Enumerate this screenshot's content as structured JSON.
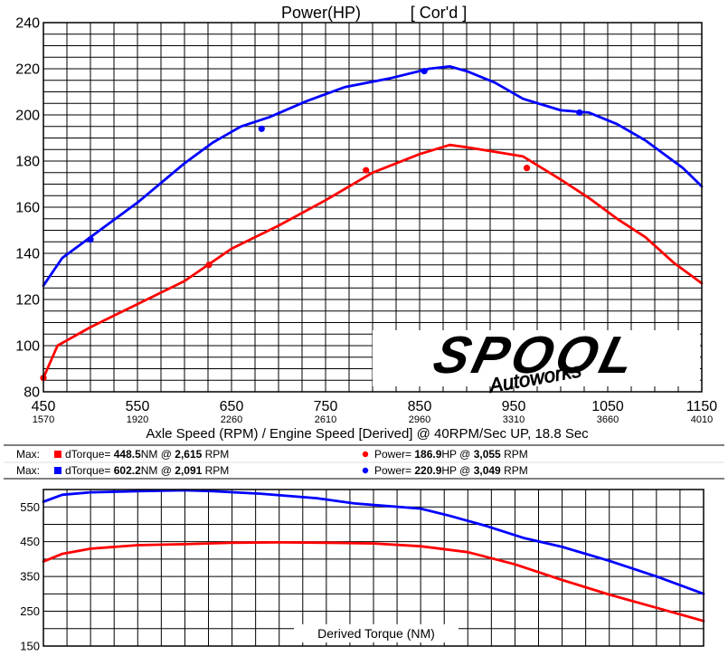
{
  "top": {
    "title": "Power(HP)",
    "subtitle": "[ Cor'd ]",
    "axis_caption": "Axle Speed (RPM) / Engine Speed [Derived] @ 40RPM/Sec UP, 18.8 Sec",
    "logo_text": "SPOOL",
    "logo_script": "Autoworks"
  },
  "legend": {
    "rows": [
      {
        "max_label": "Max:",
        "torque": {
          "label": "dTorque= ",
          "value": "448.5",
          "unit": "NM @ ",
          "rpm": "2,615",
          "rpm_unit": " RPM",
          "color": "#ff0000"
        },
        "power": {
          "label": "Power= ",
          "value": "186.9",
          "unit": "HP @ ",
          "rpm": "3,055",
          "rpm_unit": " RPM",
          "color": "#ff0000"
        }
      },
      {
        "max_label": "Max:",
        "torque": {
          "label": "dTorque= ",
          "value": "602.2",
          "unit": "NM @ ",
          "rpm": "2,091",
          "rpm_unit": " RPM",
          "color": "#0000ff"
        },
        "power": {
          "label": "Power= ",
          "value": "220.9",
          "unit": "HP @ ",
          "rpm": "3,049",
          "rpm_unit": " RPM",
          "color": "#0000ff"
        }
      }
    ]
  },
  "colors": {
    "red": "#ff0000",
    "blue": "#0000ff",
    "grid": "#000000"
  },
  "chart_data": [
    {
      "type": "line",
      "title": "Power(HP)",
      "subtitle": "[ Cor'd ]",
      "xlabel": "Axle Speed (RPM) / Engine Speed [Derived] @ 40RPM/Sec UP, 18.8 Sec",
      "ylabel": "",
      "xlim": [
        450,
        1150
      ],
      "ylim": [
        80,
        240
      ],
      "x_ticks": [
        "450",
        "550",
        "650",
        "750",
        "850",
        "950",
        "1050",
        "1150"
      ],
      "x_ticks_secondary": [
        "1570",
        "1920",
        "2260",
        "2610",
        "2960",
        "3310",
        "3660",
        "4010"
      ],
      "y_ticks": [
        "80",
        "100",
        "120",
        "140",
        "160",
        "180",
        "200",
        "220",
        "240"
      ],
      "grid": true,
      "series": [
        {
          "color": "#0000ff",
          "x": [
            450,
            470,
            500,
            550,
            600,
            630,
            660,
            690,
            730,
            770,
            820,
            860,
            882,
            900,
            930,
            960,
            1000,
            1030,
            1060,
            1090,
            1130,
            1150
          ],
          "y": [
            126,
            138,
            147,
            162,
            179,
            188,
            195,
            199,
            206,
            212,
            216,
            220,
            221,
            219,
            214,
            207,
            202,
            201,
            196,
            189,
            177,
            169
          ],
          "markers_x": [
            500,
            682,
            855,
            1020
          ],
          "markers_y": [
            146,
            194,
            219,
            201
          ]
        },
        {
          "color": "#ff0000",
          "x": [
            450,
            465,
            500,
            550,
            600,
            650,
            700,
            750,
            800,
            850,
            882,
            900,
            930,
            960,
            1000,
            1030,
            1060,
            1090,
            1120,
            1150
          ],
          "y": [
            86,
            100,
            108,
            118,
            128,
            142,
            152,
            163,
            175,
            183,
            187,
            186,
            184,
            182,
            172,
            164,
            155,
            147,
            136,
            127
          ],
          "markers_x": [
            450,
            626,
            793,
            964
          ],
          "markers_y": [
            86,
            135,
            176,
            177
          ]
        }
      ]
    },
    {
      "type": "line",
      "title": "",
      "xlabel": "Derived Torque (NM)",
      "ylabel": "",
      "xlim": [
        450,
        1150
      ],
      "ylim": [
        150,
        600
      ],
      "y_ticks": [
        "150",
        "250",
        "350",
        "450",
        "550"
      ],
      "grid": true,
      "series": [
        {
          "color": "#0000ff",
          "x": [
            450,
            470,
            500,
            550,
            600,
            630,
            680,
            740,
            780,
            850,
            880,
            920,
            960,
            1000,
            1050,
            1100,
            1150
          ],
          "y": [
            565,
            585,
            592,
            595,
            598,
            595,
            588,
            575,
            560,
            545,
            525,
            495,
            460,
            435,
            395,
            350,
            300
          ],
          "markers_x": [],
          "markers_y": []
        },
        {
          "color": "#ff0000",
          "x": [
            450,
            470,
            500,
            550,
            600,
            650,
            700,
            750,
            800,
            850,
            900,
            950,
            1000,
            1050,
            1100,
            1150
          ],
          "y": [
            393,
            415,
            430,
            440,
            443,
            447,
            448,
            447,
            445,
            437,
            420,
            385,
            340,
            298,
            260,
            222
          ],
          "markers_x": [],
          "markers_y": []
        }
      ]
    }
  ]
}
